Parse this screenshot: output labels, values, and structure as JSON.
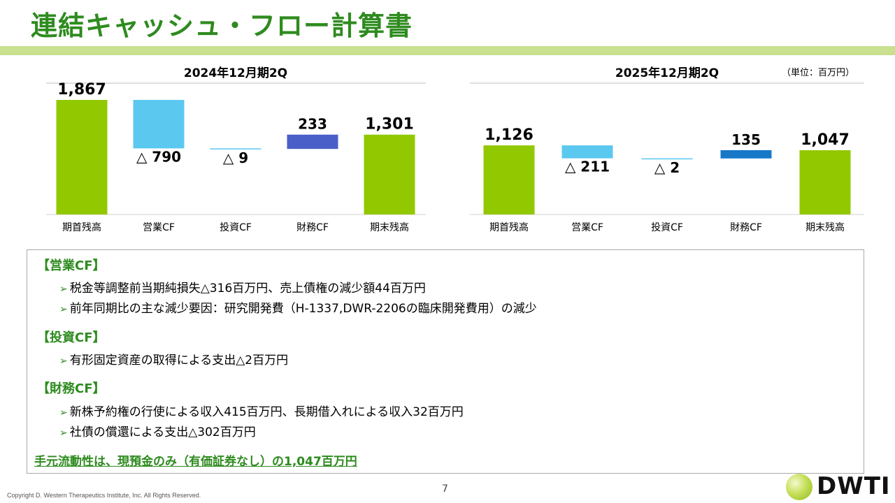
{
  "title": "連結キャッシュ・フロー計算書",
  "unit_note": "（単位：百万円）",
  "chart_data": [
    {
      "type": "bar",
      "title": "2024年12月期2Q",
      "categories": [
        "期首残高",
        "営業CF",
        "投資CF",
        "財務CF",
        "期末残高"
      ],
      "values": [
        1867,
        -790,
        -9,
        233,
        1301
      ],
      "value_labels": [
        "1,867",
        "△ 790",
        "△ 9",
        "233",
        "1,301"
      ],
      "ylim": [
        0,
        1900
      ],
      "colors": [
        "#92c800",
        "#5bc8f0",
        "#5bc8f0",
        "#4a5fc8",
        "#92c800"
      ]
    },
    {
      "type": "bar",
      "title": "2025年12月期2Q",
      "categories": [
        "期首残高",
        "営業CF",
        "投資CF",
        "財務CF",
        "期末残高"
      ],
      "values": [
        1126,
        -211,
        -2,
        135,
        1047
      ],
      "value_labels": [
        "1,126",
        "△ 211",
        "△ 2",
        "135",
        "1,047"
      ],
      "ylim": [
        0,
        1900
      ],
      "colors": [
        "#92c800",
        "#5bc8f0",
        "#5bc8f0",
        "#1778c8",
        "#92c800"
      ]
    }
  ],
  "notes": {
    "operating": {
      "heading": "【営業CF】",
      "bullets": [
        "税金等調整前当期純損失△316百万円、売上債権の減少額44百万円",
        "前年同期比の主な減少要因：研究開発費（H-1337,DWR-2206の臨床開発費用）の減少"
      ]
    },
    "investing": {
      "heading": "【投資CF】",
      "bullets": [
        "有形固定資産の取得による支出△2百万円"
      ]
    },
    "financing": {
      "heading": "【財務CF】",
      "bullets": [
        "新株予約権の行使による収入415百万円、長期借入れによる収入32百万円",
        "社債の償還による支出△302百万円"
      ]
    },
    "summary": "手元流動性は、現預金のみ（有価証券なし）の1,047百万円"
  },
  "footer": {
    "page": "7",
    "copyright": "Copyright D. Western Therapeutics Institute, Inc. All Rights Reserved.",
    "logo_text": "DWTI"
  }
}
